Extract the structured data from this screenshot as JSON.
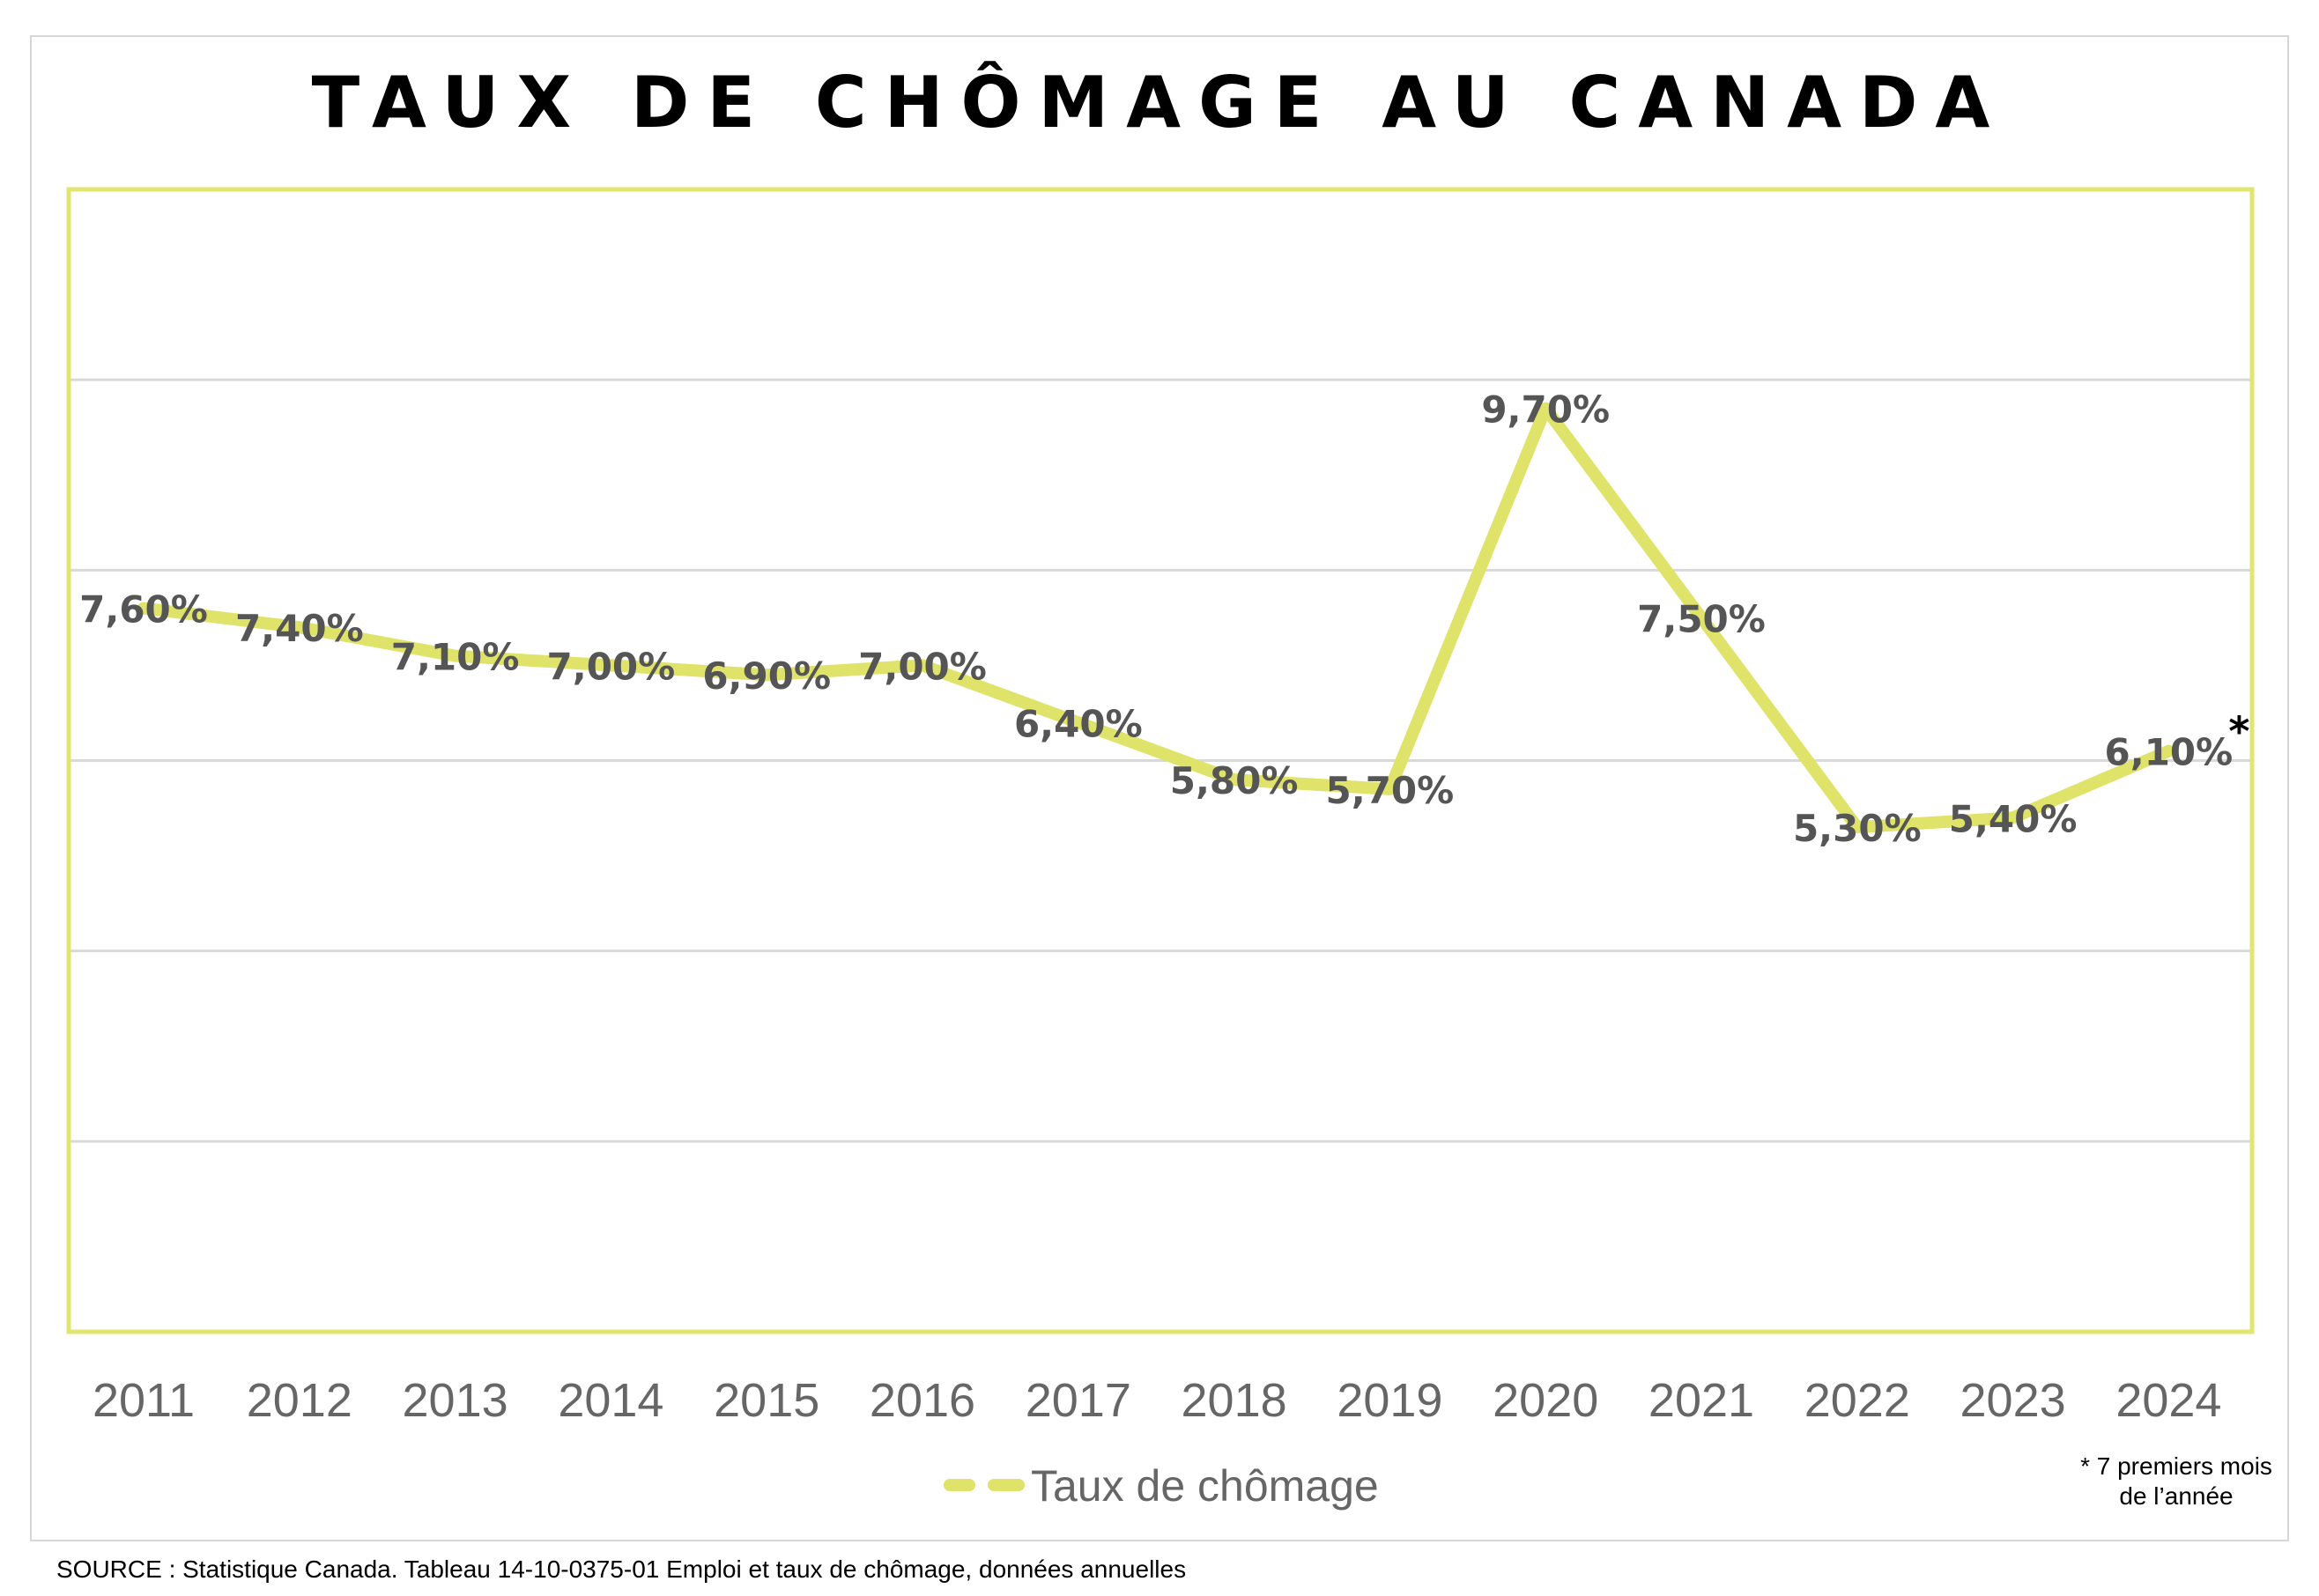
{
  "chart_data": {
    "type": "line",
    "title": "TAUX DE CHÔMAGE AU CANADA",
    "xlabel": "",
    "ylabel": "",
    "categories": [
      "2011",
      "2012",
      "2013",
      "2014",
      "2015",
      "2016",
      "2017",
      "2018",
      "2019",
      "2020",
      "2021",
      "2022",
      "2023",
      "2024"
    ],
    "series": [
      {
        "name": "Taux de chômage",
        "values": [
          7.6,
          7.4,
          7.1,
          7.0,
          6.9,
          7.0,
          6.4,
          5.8,
          5.7,
          9.7,
          7.5,
          5.3,
          5.4,
          6.1
        ],
        "labels": [
          "7,60%",
          "7,40%",
          "7,10%",
          "7,00%",
          "6,90%",
          "7,00%",
          "6,40%",
          "5,80%",
          "5,70%",
          "9,70%",
          "7,50%",
          "5,30%",
          "5,40%",
          "6,10%"
        ]
      }
    ],
    "ylim": [
      0,
      12
    ],
    "grid": true,
    "legend": "bottom-center",
    "line_color": "#e0e36a",
    "frame_color": "#e2e56e",
    "annotation": "*"
  },
  "footnote": {
    "line1": "* 7 premiers mois",
    "line2": "de l’année"
  },
  "source": "SOURCE : Statistique Canada. Tableau 14-10-0375-01  Emploi et taux de chômage, données annuelles"
}
